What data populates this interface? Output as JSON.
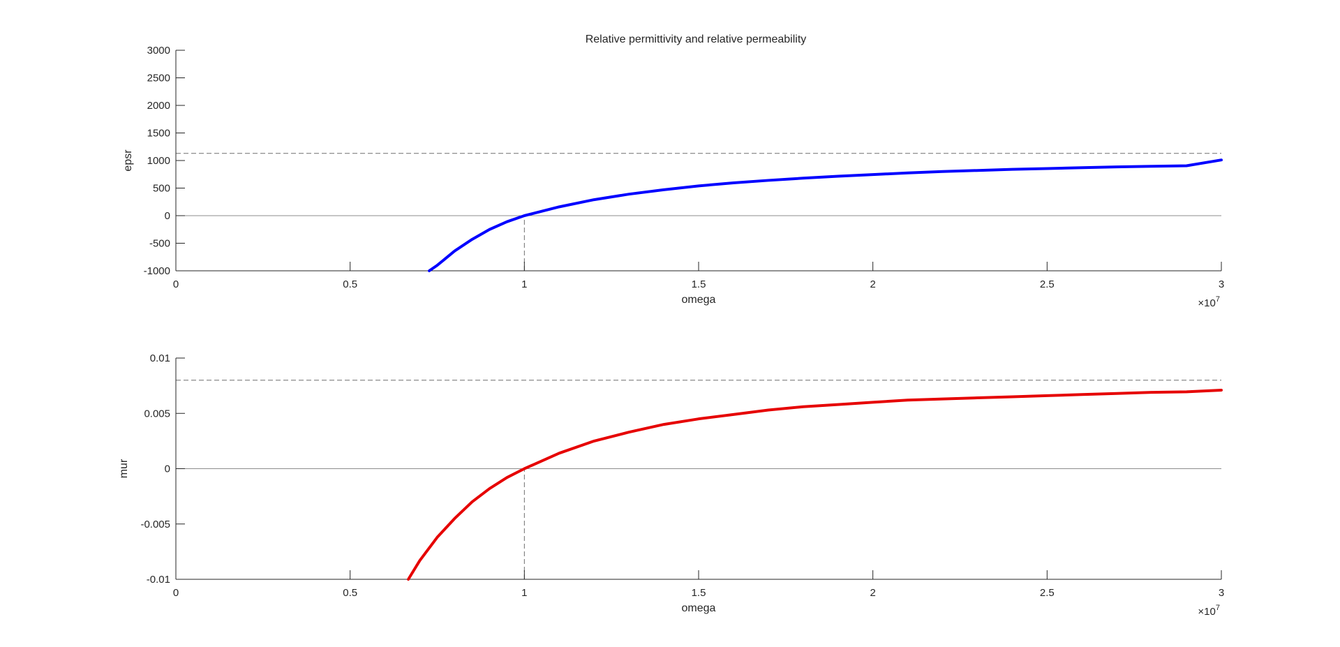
{
  "figure": {
    "title": "Relative permittivity and relative permeability"
  },
  "chart_data": [
    {
      "type": "line",
      "title": "Relative permittivity and relative permeability",
      "xlabel": "omega",
      "ylabel": "epsr",
      "x_exponent_label": "×10",
      "x_exponent_power": "7",
      "xlim": [
        0,
        30000000
      ],
      "ylim": [
        -1000,
        3000
      ],
      "xticks": [
        0,
        5000000,
        10000000,
        15000000,
        20000000,
        25000000,
        30000000
      ],
      "xtick_labels": [
        "0",
        "0.5",
        "1",
        "1.5",
        "2",
        "2.5",
        "3"
      ],
      "yticks": [
        -1000,
        -500,
        0,
        500,
        1000,
        1500,
        2000,
        2500,
        3000
      ],
      "ytick_labels": [
        "-1000",
        "-500",
        "0",
        "500",
        "1000",
        "1500",
        "2000",
        "2500",
        "3000"
      ],
      "grid": false,
      "series": [
        {
          "color": "#0000ff",
          "x": [
            7270000,
            7500000,
            8000000,
            8500000,
            9000000,
            9500000,
            10000000,
            11000000,
            12000000,
            13000000,
            14000000,
            15000000,
            16000000,
            17000000,
            18000000,
            19000000,
            20000000,
            21000000,
            22000000,
            23000000,
            24000000,
            25000000,
            26000000,
            27000000,
            28000000,
            29000000,
            30000000
          ],
          "y": [
            -1000,
            -900,
            -640,
            -430,
            -250,
            -110,
            0,
            160,
            290,
            390,
            470,
            540,
            595,
            640,
            680,
            715,
            745,
            775,
            800,
            820,
            840,
            855,
            870,
            885,
            895,
            905,
            1010
          ]
        }
      ],
      "reference_lines": [
        {
          "orientation": "horizontal",
          "value": 1130,
          "style": "dashed"
        },
        {
          "orientation": "horizontal",
          "value": 0,
          "style": "solid"
        },
        {
          "orientation": "vertical",
          "value": 10000000,
          "from": -1000,
          "to": 0,
          "style": "dashed"
        }
      ]
    },
    {
      "type": "line",
      "xlabel": "omega",
      "ylabel": "mur",
      "x_exponent_label": "×10",
      "x_exponent_power": "7",
      "xlim": [
        0,
        30000000
      ],
      "ylim": [
        -0.01,
        0.01
      ],
      "xticks": [
        0,
        5000000,
        10000000,
        15000000,
        20000000,
        25000000,
        30000000
      ],
      "xtick_labels": [
        "0",
        "0.5",
        "1",
        "1.5",
        "2",
        "2.5",
        "3"
      ],
      "yticks": [
        -0.01,
        -0.005,
        0,
        0.005,
        0.01
      ],
      "ytick_labels": [
        "-0.01",
        "-0.005",
        "0",
        "0.005",
        "0.01"
      ],
      "grid": false,
      "series": [
        {
          "color": "#e60000",
          "x": [
            6670000,
            7000000,
            7500000,
            8000000,
            8500000,
            9000000,
            9500000,
            10000000,
            11000000,
            12000000,
            13000000,
            14000000,
            15000000,
            16000000,
            17000000,
            18000000,
            19000000,
            20000000,
            21000000,
            22000000,
            23000000,
            24000000,
            25000000,
            26000000,
            27000000,
            28000000,
            29000000,
            30000000
          ],
          "y": [
            -0.01,
            -0.0083,
            -0.0062,
            -0.0045,
            -0.003,
            -0.0018,
            -0.0008,
            0,
            0.0014,
            0.0025,
            0.0033,
            0.004,
            0.0045,
            0.0049,
            0.0053,
            0.0056,
            0.0058,
            0.006,
            0.0062,
            0.0063,
            0.0064,
            0.0065,
            0.0066,
            0.0067,
            0.0068,
            0.0069,
            0.00695,
            0.0071
          ]
        }
      ],
      "reference_lines": [
        {
          "orientation": "horizontal",
          "value": 0.008,
          "style": "dashed"
        },
        {
          "orientation": "horizontal",
          "value": 0,
          "style": "solid"
        },
        {
          "orientation": "vertical",
          "value": 10000000,
          "from": -0.01,
          "to": 0,
          "style": "dashed"
        }
      ]
    }
  ]
}
